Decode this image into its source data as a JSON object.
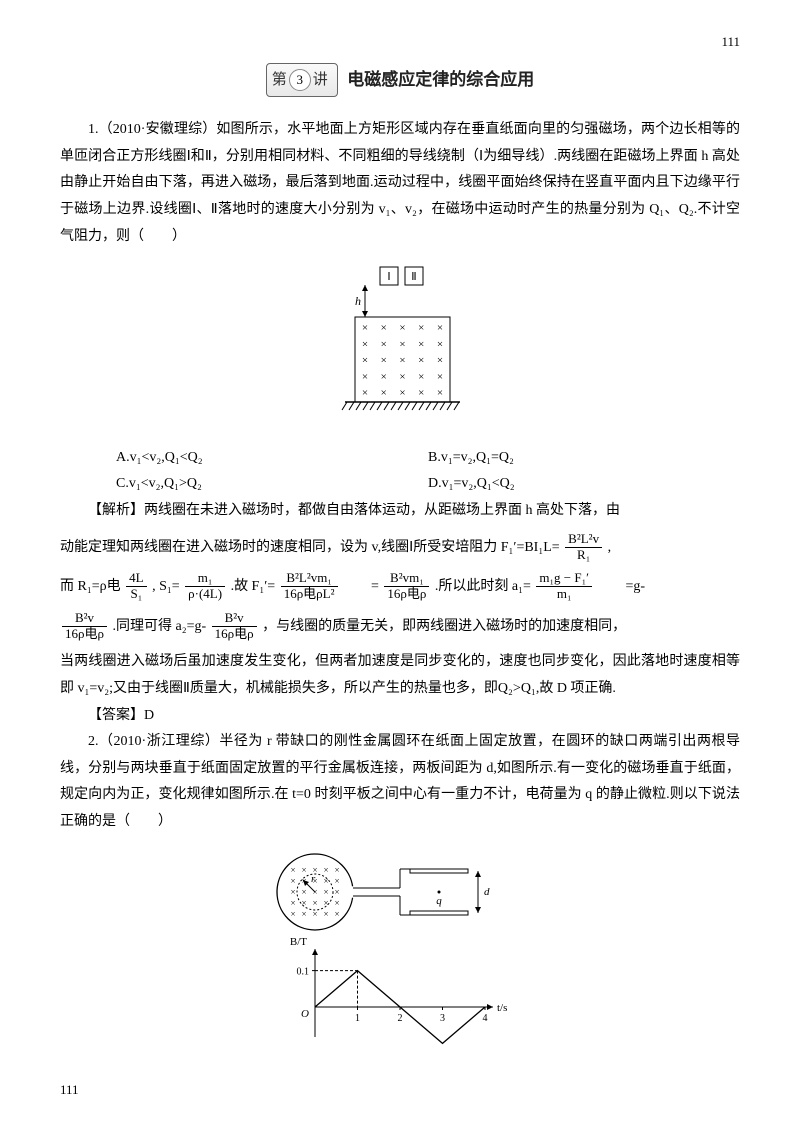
{
  "page_number_top": "111",
  "page_number_bottom": "111",
  "header": {
    "badge_chars": [
      "第",
      "讲"
    ],
    "badge_num": "3",
    "title": "电磁感应定律的综合应用"
  },
  "q1": {
    "intro": "1.（2010·安徽理综）如图所示，水平地面上方矩形区域内存在垂直纸面向里的匀强磁场，两个边长相等的单匝闭合正方形线圈Ⅰ和Ⅱ，分别用相同材料、不同粗细的导线绕制（Ⅰ为细导线）.两线圈在距磁场上界面 h 高处由静止开始自由下落，再进入磁场，最后落到地面.运动过程中，线圈平面始终保持在竖直平面内且下边缘平行于磁场上边界.设线圈Ⅰ、Ⅱ落地时的速度大小分别为 v₁、v₂，在磁场中运动时产生的热量分别为 Q₁、Q₂.不计空气阻力，则（　　）",
    "options": {
      "A": "A.v₁<v₂,Q₁<Q₂",
      "B": "B.v₁=v₂,Q₁=Q₂",
      "C": "C.v₁<v₂,Q₁>Q₂",
      "D": "D.v₁=v₂,Q₁<Q₂"
    },
    "analysis_label": "【解析】",
    "analysis_1": "两线圈在未进入磁场时，都做自由落体运动，从距磁场上界面 h 高处下落，由",
    "analysis_2a": "动能定理知两线圈在进入磁场时的速度相同，设为 v,线圈Ⅰ所受安培阻力 F₁′=BI₁L=",
    "analysis_2b": " ,",
    "analysis_3a": "而 R₁=",
    "analysis_3b": " ,  S₁=",
    "analysis_3c": " .故 F₁′=",
    "analysis_3d": "　　=",
    "analysis_3e": " .所以此时刻 a₁=",
    "analysis_3f": "　　=g-",
    "analysis_4a": " .同理可得 a₂=g-",
    "analysis_4b": " ，与线圈的质量无关，即两线圈进入磁场时的加速度相同，",
    "analysis_5": "当两线圈进入磁场后虽加速度发生变化，但两者加速度是同步变化的，速度也同步变化，因此落地时速度相等即 v₁=v₂;又由于线圈Ⅱ质量大，机械能损失多，所以产生的热量也多，即Q₂>Q₁,故 D 项正确.",
    "answer": "【答案】D",
    "fig": {
      "coil1": "Ⅰ",
      "coil2": "Ⅱ",
      "h_label": "h",
      "cross": "×",
      "box_color": "#000",
      "bg": "#fff",
      "rows": 5,
      "cols": 5
    },
    "fracs": {
      "f1_num": "B²L²v",
      "f1_den": "R₁",
      "f2_num": "4L",
      "f2_den": "S₁",
      "f2_coef": "ρ电",
      "f3_num": "m₁",
      "f3_den": "ρ·(4L)",
      "f4_num": "B²L²vm₁",
      "f4_den": "16ρ电ρL²",
      "f5_num": "B²vm₁",
      "f5_den": "16ρ电ρ",
      "f6_num": "m₁g − F₁′",
      "f6_den": "m₁",
      "f7_num": "B²v",
      "f7_den": "16ρ电ρ",
      "f8_num": "B²v",
      "f8_den": "16ρ电ρ"
    }
  },
  "q2": {
    "intro": "2.（2010·浙江理综）半径为 r 带缺口的刚性金属圆环在纸面上固定放置，在圆环的缺口两端引出两根导线，分别与两块垂直于纸面固定放置的平行金属板连接，两板间距为 d,如图所示.有一变化的磁场垂直于纸面，规定向内为正，变化规律如图所示.在 t=0 时刻平板之间中心有一重力不计，电荷量为 q 的静止微粒.则以下说法正确的是（　　）",
    "fig": {
      "d_label": "d",
      "q_label": "q",
      "r_label": "r",
      "y_label": "B/T",
      "y_tick": "0.1",
      "x_label": "t/s",
      "x_ticks": [
        "1",
        "2",
        "3",
        "4"
      ],
      "origin": "O",
      "line_color": "#000",
      "bg": "#fff",
      "y_max": 0.1,
      "x_max": 4,
      "points": [
        [
          0,
          0
        ],
        [
          1,
          0.1
        ],
        [
          3,
          -0.1
        ],
        [
          4,
          0
        ]
      ]
    }
  }
}
